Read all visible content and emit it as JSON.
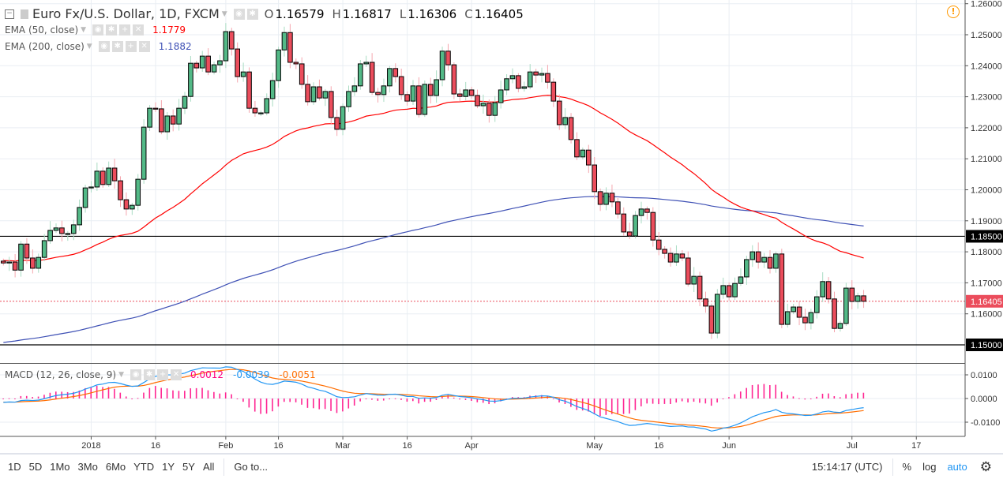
{
  "header": {
    "symbol_title": "Euro Fx/U.S. Dollar, 1D, FXCM",
    "open_label": "O",
    "open": "1.16579",
    "high_label": "H",
    "high": "1.16817",
    "low_label": "L",
    "low": "1.16306",
    "close_label": "C",
    "close": "1.16405"
  },
  "indicators": {
    "ema50": {
      "label": "EMA (50, close)",
      "value": "1.1779",
      "color": "#ff0000"
    },
    "ema200": {
      "label": "EMA (200, close)",
      "value": "1.1882",
      "color": "#3f51b5"
    },
    "macd": {
      "label": "MACD (12, 26, close, 9)",
      "hist": "0.0012",
      "macd": "-0.0039",
      "signal": "-0.0051",
      "hist_color": "#ff0080",
      "macd_color": "#2196f3",
      "signal_color": "#ff6d00"
    }
  },
  "price_axis": {
    "ticks": [
      "1.26000",
      "1.25000",
      "1.24000",
      "1.23000",
      "1.22000",
      "1.21000",
      "1.20000",
      "1.19000",
      "1.18000",
      "1.17000",
      "1.16000"
    ],
    "tick_values": [
      1.26,
      1.25,
      1.24,
      1.23,
      1.22,
      1.21,
      1.2,
      1.19,
      1.18,
      1.17,
      1.16
    ],
    "levels": [
      {
        "label": "1.18500",
        "value": 1.185
      },
      {
        "label": "1.15000",
        "value": 1.15
      }
    ],
    "last_price": {
      "label": "1.16405",
      "value": 1.16405,
      "color": "#eb4d5c"
    }
  },
  "macd_axis": {
    "ticks": [
      "0.0100",
      "0.0000",
      "-0.0100"
    ],
    "tick_values": [
      0.01,
      0,
      -0.01
    ]
  },
  "time_axis": {
    "labels": [
      "2018",
      "16",
      "Feb",
      "16",
      "Mar",
      "16",
      "Apr",
      "May",
      "16",
      "Jun",
      "Jul",
      "17"
    ],
    "label_bar_index": [
      15,
      26,
      38,
      47,
      58,
      69,
      80,
      101,
      112,
      124,
      145,
      156
    ]
  },
  "toolbar": {
    "ranges": [
      "1D",
      "5D",
      "1Mo",
      "3Mo",
      "6Mo",
      "YTD",
      "1Y",
      "5Y",
      "All"
    ],
    "goto": "Go to...",
    "clock": "15:14:17 (UTC)",
    "percent": "%",
    "log": "log",
    "auto": "auto"
  },
  "chart_data": {
    "type": "candlestick",
    "first_open": 1.177,
    "close": [
      1.1764,
      1.1767,
      1.1741,
      1.1825,
      1.178,
      1.1747,
      1.1782,
      1.1836,
      1.1869,
      1.1877,
      1.1859,
      1.1859,
      1.1887,
      1.1943,
      1.2006,
      1.2009,
      1.206,
      1.2017,
      1.207,
      1.2029,
      1.1968,
      1.1938,
      1.195,
      1.2034,
      1.2202,
      1.2263,
      1.2261,
      1.2187,
      1.2238,
      1.2212,
      1.2263,
      1.2301,
      1.2408,
      1.2393,
      1.2431,
      1.238,
      1.2403,
      1.2416,
      1.251,
      1.2454,
      1.2365,
      1.238,
      1.2263,
      1.2248,
      1.2248,
      1.2294,
      1.2352,
      1.2451,
      1.2507,
      1.2411,
      1.2406,
      1.234,
      1.2284,
      1.2332,
      1.2296,
      1.2317,
      1.2233,
      1.2195,
      1.2268,
      1.2317,
      1.2335,
      1.2406,
      1.2411,
      1.2314,
      1.2307,
      1.2335,
      1.2391,
      1.2365,
      1.2307,
      1.2286,
      1.2335,
      1.2243,
      1.234,
      1.2304,
      1.2355,
      1.2447,
      1.2403,
      1.2309,
      1.2301,
      1.2322,
      1.2304,
      1.2271,
      1.2279,
      1.224,
      1.2281,
      1.2322,
      1.2358,
      1.2368,
      1.2327,
      1.2332,
      1.238,
      1.237,
      1.2375,
      1.2347,
      1.2286,
      1.221,
      1.2233,
      1.2162,
      1.2106,
      1.2128,
      1.208,
      1.1994,
      1.1953,
      1.1989,
      1.1961,
      1.1922,
      1.1864,
      1.1851,
      1.1917,
      1.1938,
      1.1927,
      1.1838,
      1.1808,
      1.1795,
      1.1767,
      1.1793,
      1.178,
      1.1696,
      1.1721,
      1.1648,
      1.1625,
      1.1538,
      1.1663,
      1.1691,
      1.1655,
      1.1698,
      1.1719,
      1.1775,
      1.18,
      1.1767,
      1.1782,
      1.1747,
      1.1793,
      1.1566,
      1.1607,
      1.1622,
      1.1589,
      1.1571,
      1.1604,
      1.1655,
      1.1704,
      1.1648,
      1.1553,
      1.1569,
      1.1683,
      1.164,
      1.1658,
      1.16405
    ],
    "ema_seeds": {
      "ema50": 1.1772,
      "ema200": 1.1505,
      "ema12": 1.176,
      "ema26": 1.1778,
      "signal": -0.0015
    },
    "price_range": [
      1.145,
      1.262
    ],
    "macd_range": [
      -0.015,
      0.015
    ]
  }
}
